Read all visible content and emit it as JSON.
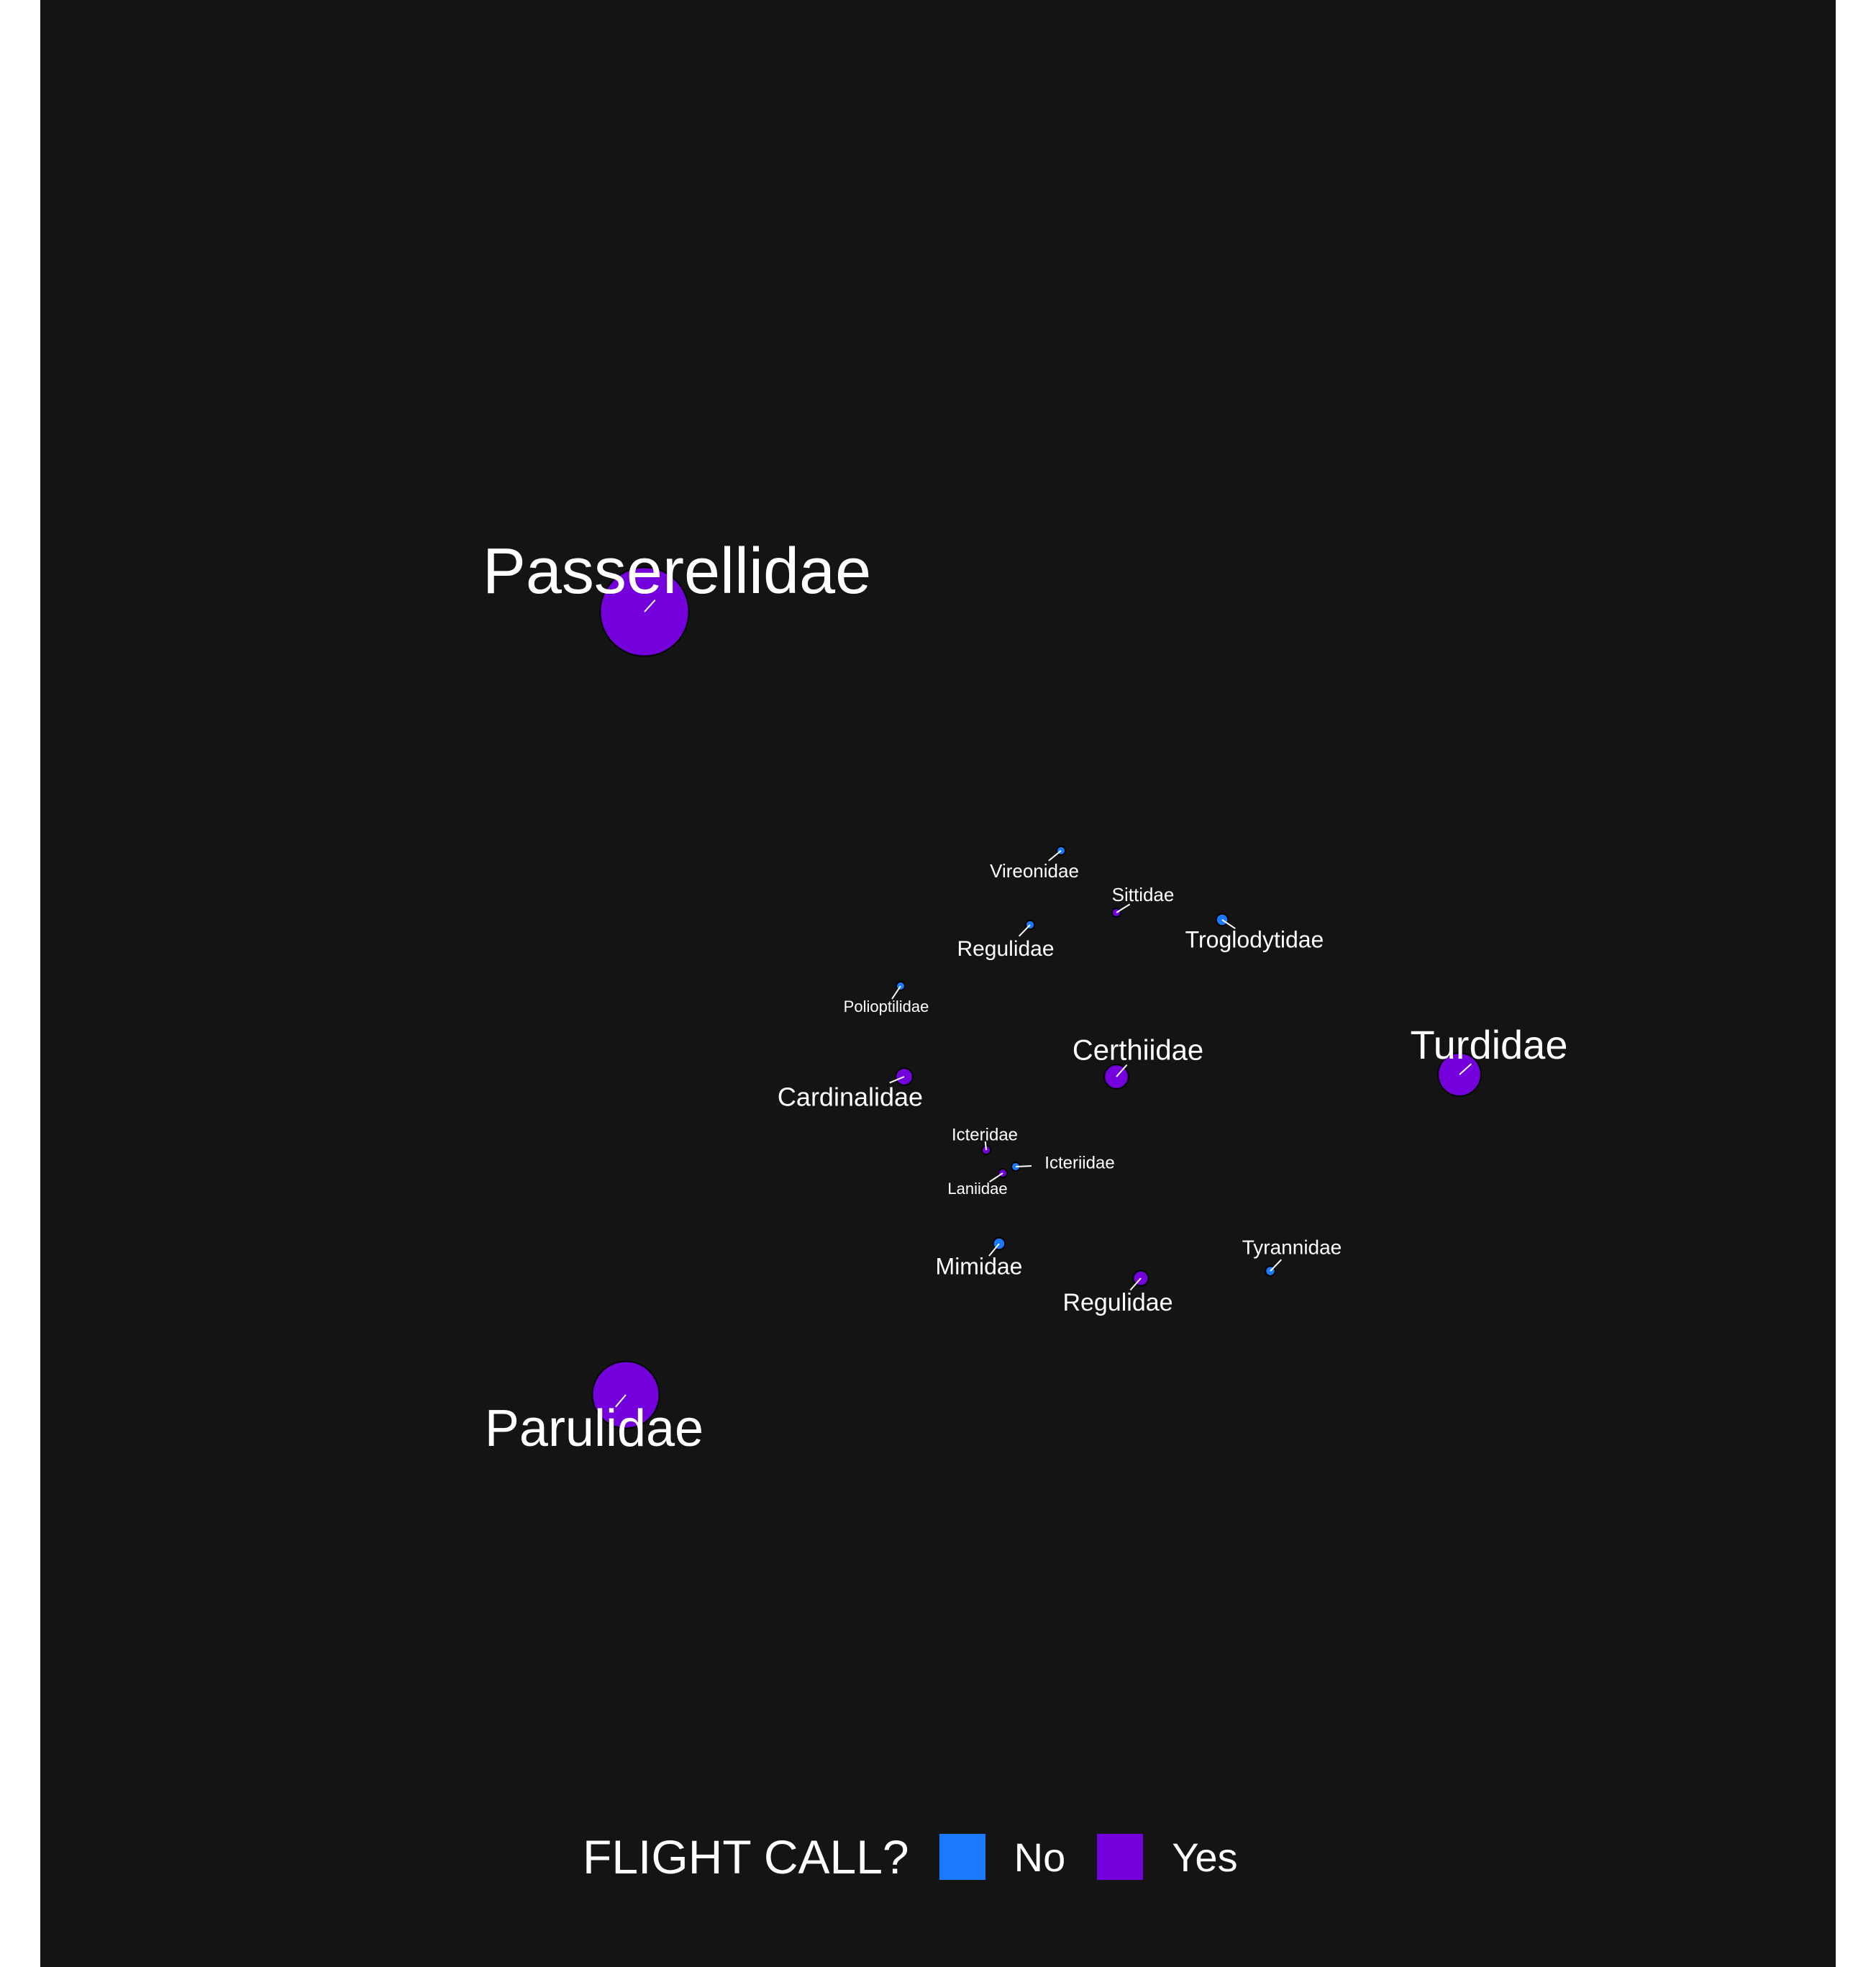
{
  "chart_data": {
    "type": "packed-bubble",
    "title": "",
    "legend": {
      "title": "FLIGHT CALL?",
      "placement": "bottom",
      "entries": [
        {
          "name": "No",
          "color": "#1a7aff"
        },
        {
          "name": "Yes",
          "color": "#7400db"
        }
      ]
    },
    "categories": [
      "Passerellidae",
      "Parulidae",
      "Turdidae",
      "Certhiidae",
      "Cardinalidae",
      "Troglodytidae",
      "Mimidae",
      "Regulidae",
      "Tyrannidae",
      "Regulidae",
      "Sittidae",
      "Vireonidae",
      "Icteridae",
      "Icteriidae",
      "Polioptilidae",
      "Laniidae"
    ],
    "flight_call": [
      "Yes",
      "Yes",
      "Yes",
      "Yes",
      "Yes",
      "No",
      "No",
      "Yes",
      "No",
      "No",
      "Yes",
      "No",
      "Yes",
      "No",
      "No",
      "Yes"
    ],
    "values": [
      2024,
      1152,
      475,
      150,
      75,
      36,
      36,
      59,
      24,
      20,
      13,
      9,
      5,
      1,
      0.3,
      0.1
    ],
    "value_note": "",
    "colors": {
      "No": "#1a7aff",
      "Yes": "#7400db",
      "background": "#141414",
      "label": "#ffffff"
    }
  }
}
